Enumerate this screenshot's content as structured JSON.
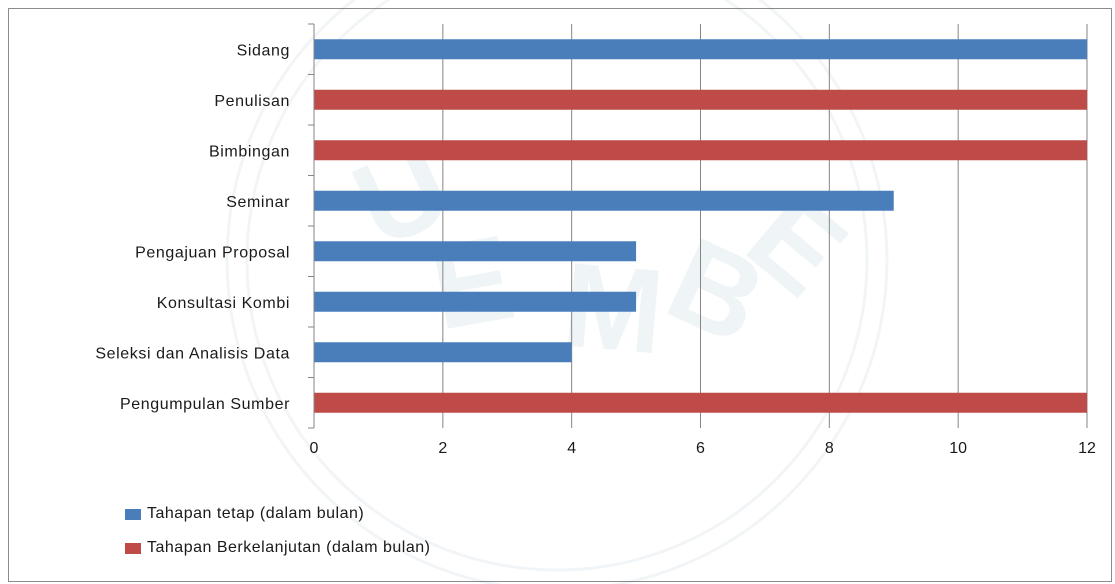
{
  "chart_data": {
    "type": "bar",
    "orientation": "horizontal",
    "categories": [
      "Sidang",
      "Penulisan",
      "Bimbingan",
      "Seminar",
      "Pengajuan Proposal",
      "Konsultasi Kombi",
      "Seleksi dan Analisis Data",
      "Pengumpulan Sumber"
    ],
    "values": [
      12,
      12,
      12,
      9,
      5,
      5,
      4,
      12
    ],
    "bar_series": [
      "Tahapan tetap (dalam bulan)",
      "Tahapan Berkelanjutan (dalam bulan)",
      "Tahapan Berkelanjutan (dalam bulan)",
      "Tahapan tetap (dalam bulan)",
      "Tahapan tetap (dalam bulan)",
      "Tahapan tetap (dalam bulan)",
      "Tahapan tetap (dalam bulan)",
      "Tahapan Berkelanjutan (dalam bulan)"
    ],
    "series": [
      {
        "name": "Tahapan tetap (dalam bulan)",
        "color": "#4a7ebb"
      },
      {
        "name": "Tahapan Berkelanjutan (dalam bulan)",
        "color": "#be4b48"
      }
    ],
    "xticks": [
      "0",
      "2",
      "4",
      "6",
      "8",
      "10",
      "12"
    ],
    "xlim": [
      0,
      12
    ],
    "grid": true,
    "legend_position": "bottom-left",
    "title": "",
    "xlabel": "",
    "ylabel": ""
  },
  "legend": {
    "item1": "Tahapan tetap (dalam bulan)",
    "item2": "Tahapan Berkelanjutan (dalam bulan)"
  },
  "colors": {
    "series1": "#4a7ebb",
    "series2": "#be4b48",
    "grid": "#868686"
  }
}
